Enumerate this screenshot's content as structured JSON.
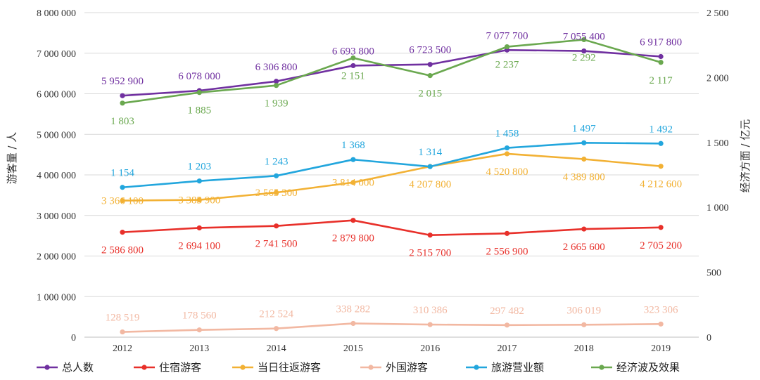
{
  "chart_data": {
    "type": "line",
    "title": "",
    "categories": [
      "2012",
      "2013",
      "2014",
      "2015",
      "2016",
      "2017",
      "2018",
      "2019"
    ],
    "y_left": {
      "label": "游客量 / 人",
      "lim": [
        0,
        8000000
      ],
      "ticks": [
        0,
        1000000,
        2000000,
        3000000,
        4000000,
        5000000,
        6000000,
        7000000,
        8000000
      ],
      "tick_labels": [
        "0",
        "1 000 000",
        "2 000 000",
        "3 000 000",
        "4 000 000",
        "5 000 000",
        "6 000 000",
        "7 000 000",
        "8 000 000"
      ]
    },
    "y_right": {
      "label": "经济方面 / 亿元",
      "lim": [
        0,
        2500
      ],
      "ticks": [
        0,
        500,
        1000,
        1500,
        2000,
        2500
      ],
      "tick_labels": [
        "0",
        "500",
        "1 000",
        "1 500",
        "2 000",
        "2 500"
      ]
    },
    "grid": "horizontal",
    "legend_position": "bottom",
    "series": [
      {
        "name": "总人数",
        "axis": "left",
        "color": "#7030A0",
        "label_pos": "above",
        "values": [
          5952900,
          6078000,
          6306800,
          6693800,
          6723500,
          7077700,
          7055400,
          6917800
        ],
        "labels": [
          "5 952 900",
          "6 078 000",
          "6 306 800",
          "6 693 800",
          "6 723 500",
          "7 077 700",
          "7 055 400",
          "6 917 800"
        ]
      },
      {
        "name": "住宿游客",
        "axis": "left",
        "color": "#E8302A",
        "label_pos": "below",
        "values": [
          2586800,
          2694100,
          2741500,
          2879800,
          2515700,
          2556900,
          2665600,
          2705200
        ],
        "labels": [
          "2 586 800",
          "2 694 100",
          "2 741 500",
          "2 879 800",
          "2 515 700",
          "2 556 900",
          "2 665 600",
          "2 705 200"
        ]
      },
      {
        "name": "当日往返游客",
        "axis": "left",
        "color": "#F2B134",
        "label_pos": "mixed",
        "values": [
          3366100,
          3383900,
          3565300,
          3814000,
          4207800,
          4520800,
          4389800,
          4212600
        ],
        "labels": [
          "3 366 100",
          "3 383 900",
          "3 565 300",
          "3 814 000",
          "4 207 800",
          "4 520 800",
          "4 389 800",
          "4 212 600"
        ]
      },
      {
        "name": "外国游客",
        "axis": "left",
        "color": "#F2B8A2",
        "label_pos": "above",
        "values": [
          128519,
          178560,
          212524,
          338282,
          310386,
          297482,
          306019,
          323306
        ],
        "labels": [
          "128 519",
          "178 560",
          "212 524",
          "338 282",
          "310 386",
          "297 482",
          "306 019",
          "323 306"
        ]
      },
      {
        "name": "旅游营业额",
        "axis": "right",
        "color": "#22A6DD",
        "label_pos": "above",
        "values": [
          1154,
          1203,
          1243,
          1368,
          1314,
          1458,
          1497,
          1492
        ],
        "labels": [
          "1 154",
          "1 203",
          "1 243",
          "1 368",
          "1 314",
          "1 458",
          "1 497",
          "1 492"
        ]
      },
      {
        "name": "经济波及效果",
        "axis": "right",
        "color": "#6AA84F",
        "label_pos": "below",
        "values": [
          1803,
          1885,
          1939,
          2151,
          2015,
          2237,
          2292,
          2117
        ],
        "labels": [
          "1 803",
          "1 885",
          "1 939",
          "2 151",
          "2 015",
          "2 237",
          "2 292",
          "2 117"
        ]
      }
    ]
  }
}
